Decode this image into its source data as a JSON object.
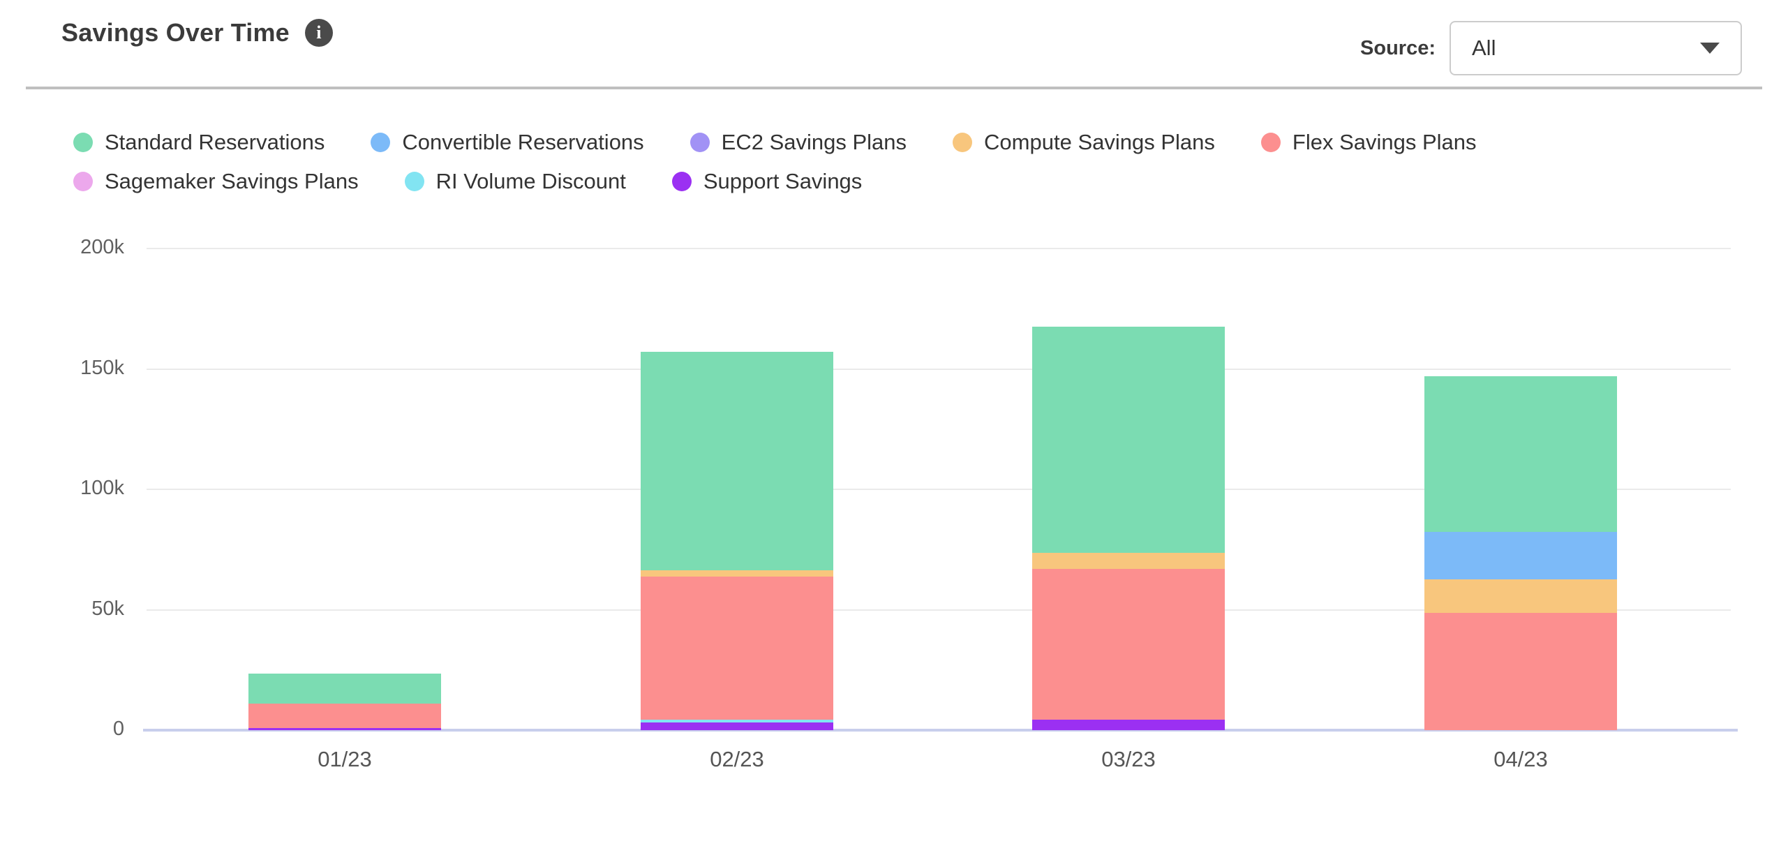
{
  "header": {
    "title": "Savings Over Time",
    "source_label": "Source:",
    "source_value": "All"
  },
  "legend": [
    {
      "label": "Standard Reservations",
      "color": "#7bdcb2"
    },
    {
      "label": "Convertible Reservations",
      "color": "#7cbaf8"
    },
    {
      "label": "EC2 Savings Plans",
      "color": "#a192f5"
    },
    {
      "label": "Compute Savings Plans",
      "color": "#f8c67d"
    },
    {
      "label": "Flex Savings Plans",
      "color": "#fc8f8f"
    },
    {
      "label": "Sagemaker Savings Plans",
      "color": "#eca8ec"
    },
    {
      "label": "RI Volume Discount",
      "color": "#82e4f2"
    },
    {
      "label": "Support Savings",
      "color": "#9b30f2"
    }
  ],
  "chart_data": {
    "type": "bar",
    "stacked": true,
    "title": "Savings Over Time",
    "xlabel": "",
    "ylabel": "",
    "categories": [
      "01/23",
      "02/23",
      "03/23",
      "04/23"
    ],
    "series": [
      {
        "name": "Standard Reservations",
        "values": [
          12600,
          90800,
          94000,
          64600
        ]
      },
      {
        "name": "Convertible Reservations",
        "values": [
          0,
          0,
          0,
          19700
        ]
      },
      {
        "name": "EC2 Savings Plans",
        "values": [
          0,
          0,
          0,
          0
        ]
      },
      {
        "name": "Compute Savings Plans",
        "values": [
          0,
          2600,
          6700,
          13900
        ]
      },
      {
        "name": "Flex Savings Plans",
        "values": [
          10100,
          59500,
          62600,
          48800
        ]
      },
      {
        "name": "Sagemaker Savings Plans",
        "values": [
          0,
          0,
          0,
          0
        ]
      },
      {
        "name": "RI Volume Discount",
        "values": [
          0,
          1000,
          0,
          0
        ]
      },
      {
        "name": "Support Savings",
        "values": [
          800,
          3300,
          4300,
          0
        ]
      }
    ],
    "totals": [
      23500,
      157200,
      167600,
      147000
    ],
    "ylim": [
      0,
      200000
    ],
    "yticks": [
      {
        "value": 0,
        "label": "0"
      },
      {
        "value": 50000,
        "label": "50k"
      },
      {
        "value": 100000,
        "label": "100k"
      },
      {
        "value": 150000,
        "label": "150k"
      },
      {
        "value": 200000,
        "label": "200k"
      }
    ],
    "grid": true,
    "legend_position": "top",
    "stack_order": "reverse-legend"
  }
}
